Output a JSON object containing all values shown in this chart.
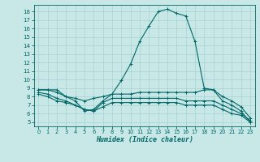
{
  "xlabel": "Humidex (Indice chaleur)",
  "bg_color": "#c8e8e8",
  "grid_color": "#a8d0d0",
  "line_color": "#006666",
  "xlim": [
    -0.5,
    23.5
  ],
  "ylim": [
    4.5,
    18.8
  ],
  "xticks": [
    0,
    1,
    2,
    3,
    4,
    5,
    6,
    7,
    8,
    9,
    10,
    11,
    12,
    13,
    14,
    15,
    16,
    17,
    18,
    19,
    20,
    21,
    22,
    23
  ],
  "yticks": [
    5,
    6,
    7,
    8,
    9,
    10,
    11,
    12,
    13,
    14,
    15,
    16,
    17,
    18
  ],
  "lines": [
    {
      "x": [
        0,
        1,
        2,
        3,
        4,
        5,
        6,
        7,
        8,
        9,
        10,
        11,
        12,
        13,
        14,
        15,
        16,
        17,
        18,
        19,
        20,
        21,
        22,
        23
      ],
      "y": [
        8.8,
        8.8,
        8.8,
        8.0,
        7.5,
        6.3,
        6.5,
        7.5,
        8.3,
        9.9,
        11.8,
        14.5,
        16.3,
        18.0,
        18.3,
        17.8,
        17.5,
        14.5,
        9.0,
        8.8,
        7.5,
        7.0,
        6.3,
        5.0
      ]
    },
    {
      "x": [
        0,
        1,
        2,
        3,
        4,
        5,
        6,
        7,
        8,
        9,
        10,
        11,
        12,
        13,
        14,
        15,
        16,
        17,
        18,
        19,
        20,
        21,
        22,
        23
      ],
      "y": [
        8.8,
        8.8,
        8.5,
        8.0,
        7.8,
        7.5,
        7.8,
        8.0,
        8.3,
        8.3,
        8.3,
        8.5,
        8.5,
        8.5,
        8.5,
        8.5,
        8.5,
        8.5,
        8.8,
        8.8,
        8.0,
        7.5,
        6.8,
        5.5
      ]
    },
    {
      "x": [
        0,
        1,
        2,
        3,
        4,
        5,
        6,
        7,
        8,
        9,
        10,
        11,
        12,
        13,
        14,
        15,
        16,
        17,
        18,
        19,
        20,
        21,
        22,
        23
      ],
      "y": [
        8.5,
        8.3,
        7.8,
        7.5,
        7.0,
        6.5,
        6.3,
        7.3,
        7.8,
        7.8,
        7.8,
        7.8,
        7.8,
        7.8,
        7.8,
        7.8,
        7.5,
        7.5,
        7.5,
        7.5,
        7.0,
        6.5,
        6.0,
        5.2
      ]
    },
    {
      "x": [
        0,
        1,
        2,
        3,
        4,
        5,
        6,
        7,
        8,
        9,
        10,
        11,
        12,
        13,
        14,
        15,
        16,
        17,
        18,
        19,
        20,
        21,
        22,
        23
      ],
      "y": [
        8.3,
        8.0,
        7.5,
        7.3,
        7.0,
        6.5,
        6.3,
        6.8,
        7.3,
        7.3,
        7.3,
        7.3,
        7.3,
        7.3,
        7.3,
        7.3,
        7.0,
        7.0,
        7.0,
        7.0,
        6.5,
        6.0,
        5.8,
        5.0
      ]
    }
  ]
}
